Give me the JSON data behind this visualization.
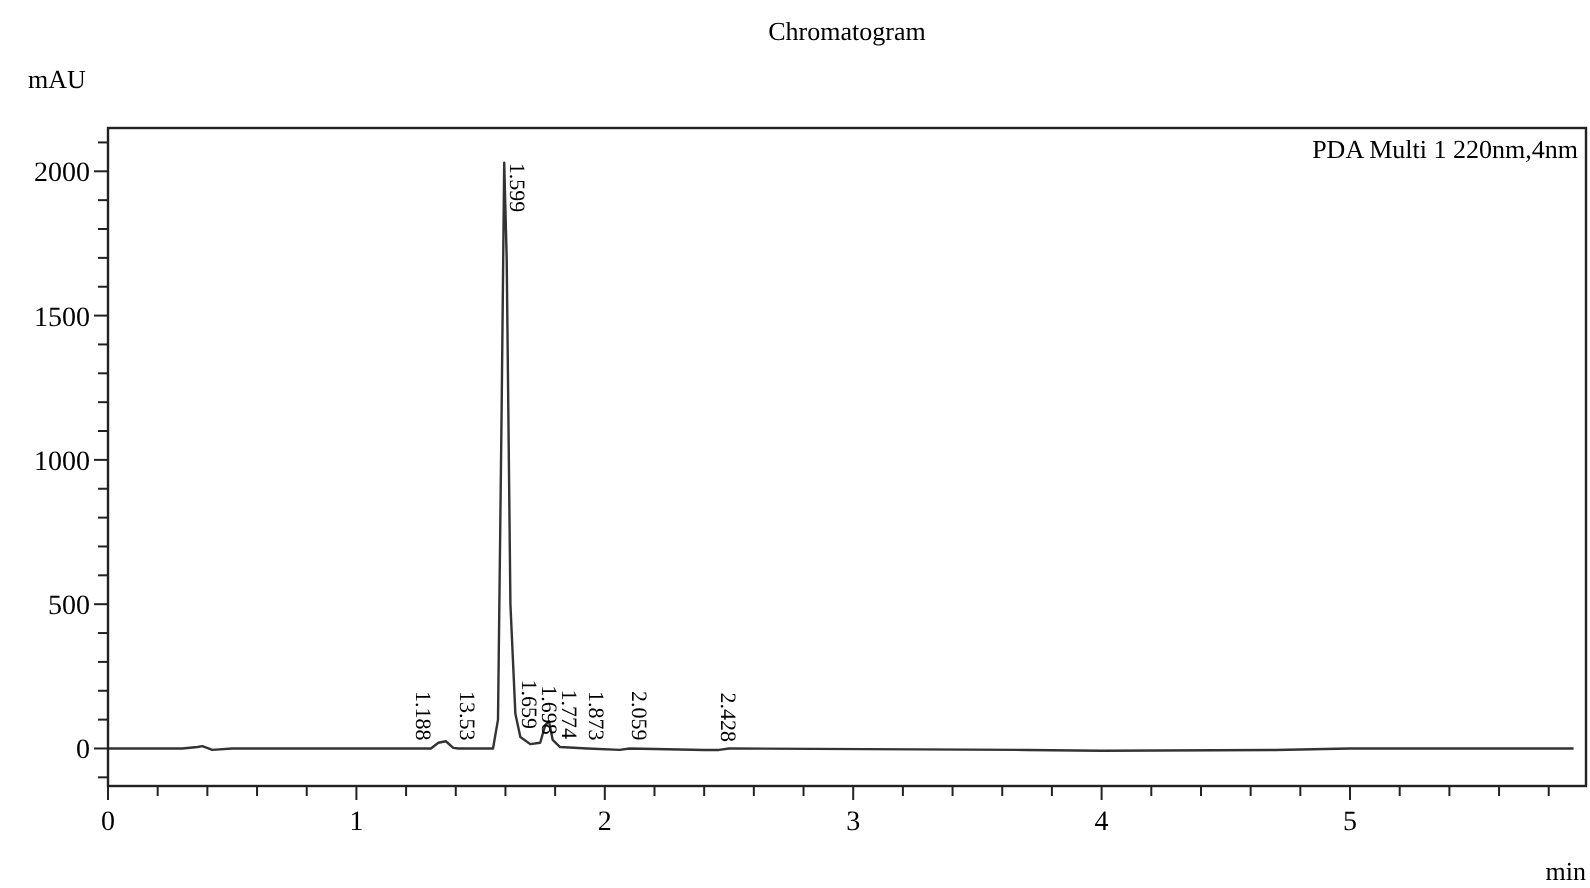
{
  "chart_data": {
    "type": "line",
    "title": "Chromatogram",
    "xlabel": "min",
    "ylabel": "mAU",
    "x": [
      0,
      0.3,
      0.36,
      0.38,
      0.42,
      0.5,
      1.23,
      1.3,
      1.33,
      1.36,
      1.39,
      1.41,
      1.55,
      1.57,
      1.585,
      1.595,
      1.605,
      1.62,
      1.64,
      1.66,
      1.7,
      1.74,
      1.76,
      1.775,
      1.79,
      1.82,
      1.93,
      2.06,
      2.1,
      2.4,
      2.46,
      2.5,
      3.7,
      4.0,
      4.7,
      5.0,
      5.9
    ],
    "series": [
      {
        "color": "#333333",
        "values": [
          0,
          0,
          5,
          8,
          -5,
          0,
          0,
          0,
          20,
          25,
          2,
          0,
          0,
          100,
          1200,
          2030,
          1700,
          500,
          120,
          40,
          15,
          20,
          80,
          95,
          30,
          5,
          0,
          -5,
          0,
          -5,
          -5,
          0,
          -5,
          -8,
          -5,
          0,
          0
        ]
      }
    ],
    "xlim": [
      0,
      5.95
    ],
    "xticks": [
      0,
      {
        "value": 0.2,
        "label": null
      },
      {
        "value": 0.4,
        "label": null
      },
      {
        "value": 0.6,
        "label": null
      },
      {
        "value": 0.8,
        "label": null
      },
      1,
      {
        "value": 1.2,
        "label": null
      },
      {
        "value": 1.4,
        "label": null
      },
      {
        "value": 1.6,
        "label": null
      },
      {
        "value": 1.8,
        "label": null
      },
      2,
      {
        "value": 2.2,
        "label": null
      },
      {
        "value": 2.4,
        "label": null
      },
      {
        "value": 2.6,
        "label": null
      },
      {
        "value": 2.8,
        "label": null
      },
      3,
      {
        "value": 3.2,
        "label": null
      },
      {
        "value": 3.4,
        "label": null
      },
      {
        "value": 3.6,
        "label": null
      },
      {
        "value": 3.8,
        "label": null
      },
      4,
      {
        "value": 4.2,
        "label": null
      },
      {
        "value": 4.4,
        "label": null
      },
      {
        "value": 4.6,
        "label": null
      },
      {
        "value": 4.8,
        "label": null
      },
      5,
      {
        "value": 5.2,
        "label": null
      },
      {
        "value": 5.4,
        "label": null
      },
      {
        "value": 5.6,
        "label": null
      },
      {
        "value": 5.8,
        "label": null
      }
    ],
    "ylim": [
      -130,
      2150
    ],
    "yticks": [
      {
        "value": -100,
        "label": null
      },
      0,
      {
        "value": 100,
        "label": null
      },
      {
        "value": 200,
        "label": null
      },
      {
        "value": 300,
        "label": null
      },
      {
        "value": 400,
        "label": null
      },
      500,
      {
        "value": 600,
        "label": null
      },
      {
        "value": 700,
        "label": null
      },
      {
        "value": 800,
        "label": null
      },
      {
        "value": 900,
        "label": null
      },
      1000,
      {
        "value": 1100,
        "label": null
      },
      {
        "value": 1200,
        "label": null
      },
      {
        "value": 1300,
        "label": null
      },
      {
        "value": 1400,
        "label": null
      },
      1500,
      {
        "value": 1600,
        "label": null
      },
      {
        "value": 1700,
        "label": null
      },
      {
        "value": 1800,
        "label": null
      },
      {
        "value": 1900,
        "label": null
      },
      2000,
      {
        "value": 2100,
        "label": null
      }
    ],
    "grid": false,
    "marker": "none",
    "line_style": "solid",
    "annotations": [
      "PDA Multi 1 220nm,4nm",
      {
        "text": "1.188",
        "x": 1.23,
        "y": 0
      },
      {
        "text": "13.53",
        "x": 1.41,
        "y": 0
      },
      {
        "text": "1.599",
        "x": 1.595,
        "y": 2030
      },
      {
        "text": "1.659",
        "x": 1.66,
        "y": 40
      },
      {
        "text": "1.698",
        "x": 1.74,
        "y": 20
      },
      {
        "text": "1.774",
        "x": 1.82,
        "y": 5
      },
      {
        "text": "1.873",
        "x": 1.93,
        "y": 0
      },
      {
        "text": "2.059",
        "x": 2.1,
        "y": 0
      },
      {
        "text": "2.428",
        "x": 2.46,
        "y": -5
      }
    ]
  }
}
